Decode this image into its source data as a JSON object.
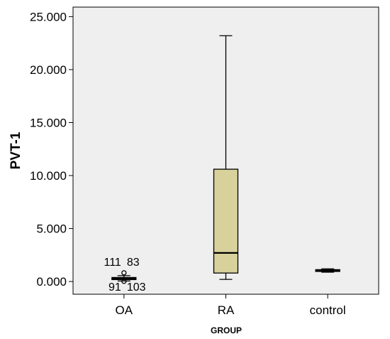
{
  "chart_data": {
    "type": "boxplot",
    "xlabel": "GROUP",
    "ylabel": "PVT-1",
    "ylim": [
      -1.2,
      25.9
    ],
    "yticks": [
      0,
      5,
      10,
      15,
      20,
      25
    ],
    "ytick_labels": [
      "0.000",
      "5.000",
      "10.000",
      "15.000",
      "20.000",
      "25.000"
    ],
    "categories": [
      "OA",
      "RA",
      "control"
    ],
    "boxes": [
      {
        "category": "OA",
        "min": 0.05,
        "q1": 0.18,
        "median": 0.28,
        "q3": 0.38,
        "max": 0.55
      },
      {
        "category": "RA",
        "min": 0.2,
        "q1": 0.8,
        "median": 2.7,
        "q3": 10.6,
        "max": 23.2
      },
      {
        "category": "control",
        "min": 0.88,
        "q1": 0.95,
        "median": 1.05,
        "q3": 1.12,
        "max": 1.2
      }
    ],
    "outliers": [
      {
        "category": "OA",
        "value": 0.82,
        "labels": [
          "111",
          "83"
        ],
        "label_position": "above"
      },
      {
        "category": "OA",
        "value": 0.02,
        "labels": [
          "91",
          "103"
        ],
        "label_position": "below"
      }
    ],
    "plot_background": "#efefef",
    "box_fill": "#d8d19c",
    "line_color": "#000000"
  }
}
